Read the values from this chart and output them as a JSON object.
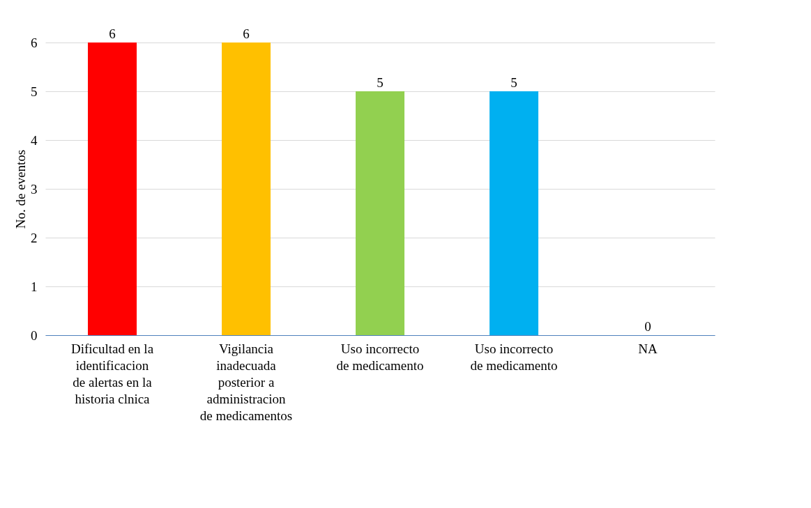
{
  "chart_data": {
    "type": "bar",
    "ylabel": "No. de eventos",
    "categories": [
      "Dificultad en la identificacion de alertas en la historia clnica",
      "Vigilancia inadecuada posterior a administracion de medicamentos",
      "Uso incorrecto de medicamento",
      "Uso incorrecto de medicamento",
      "NA"
    ],
    "values": [
      6,
      6,
      5,
      5,
      0
    ],
    "colors": [
      "#ff0000",
      "#ffc000",
      "#92d050",
      "#00b0f0",
      "#2f5597"
    ],
    "ylim": [
      0,
      6
    ],
    "yticks": [
      0,
      1,
      2,
      3,
      4,
      5,
      6
    ],
    "grid": "y",
    "data_labels": true
  }
}
